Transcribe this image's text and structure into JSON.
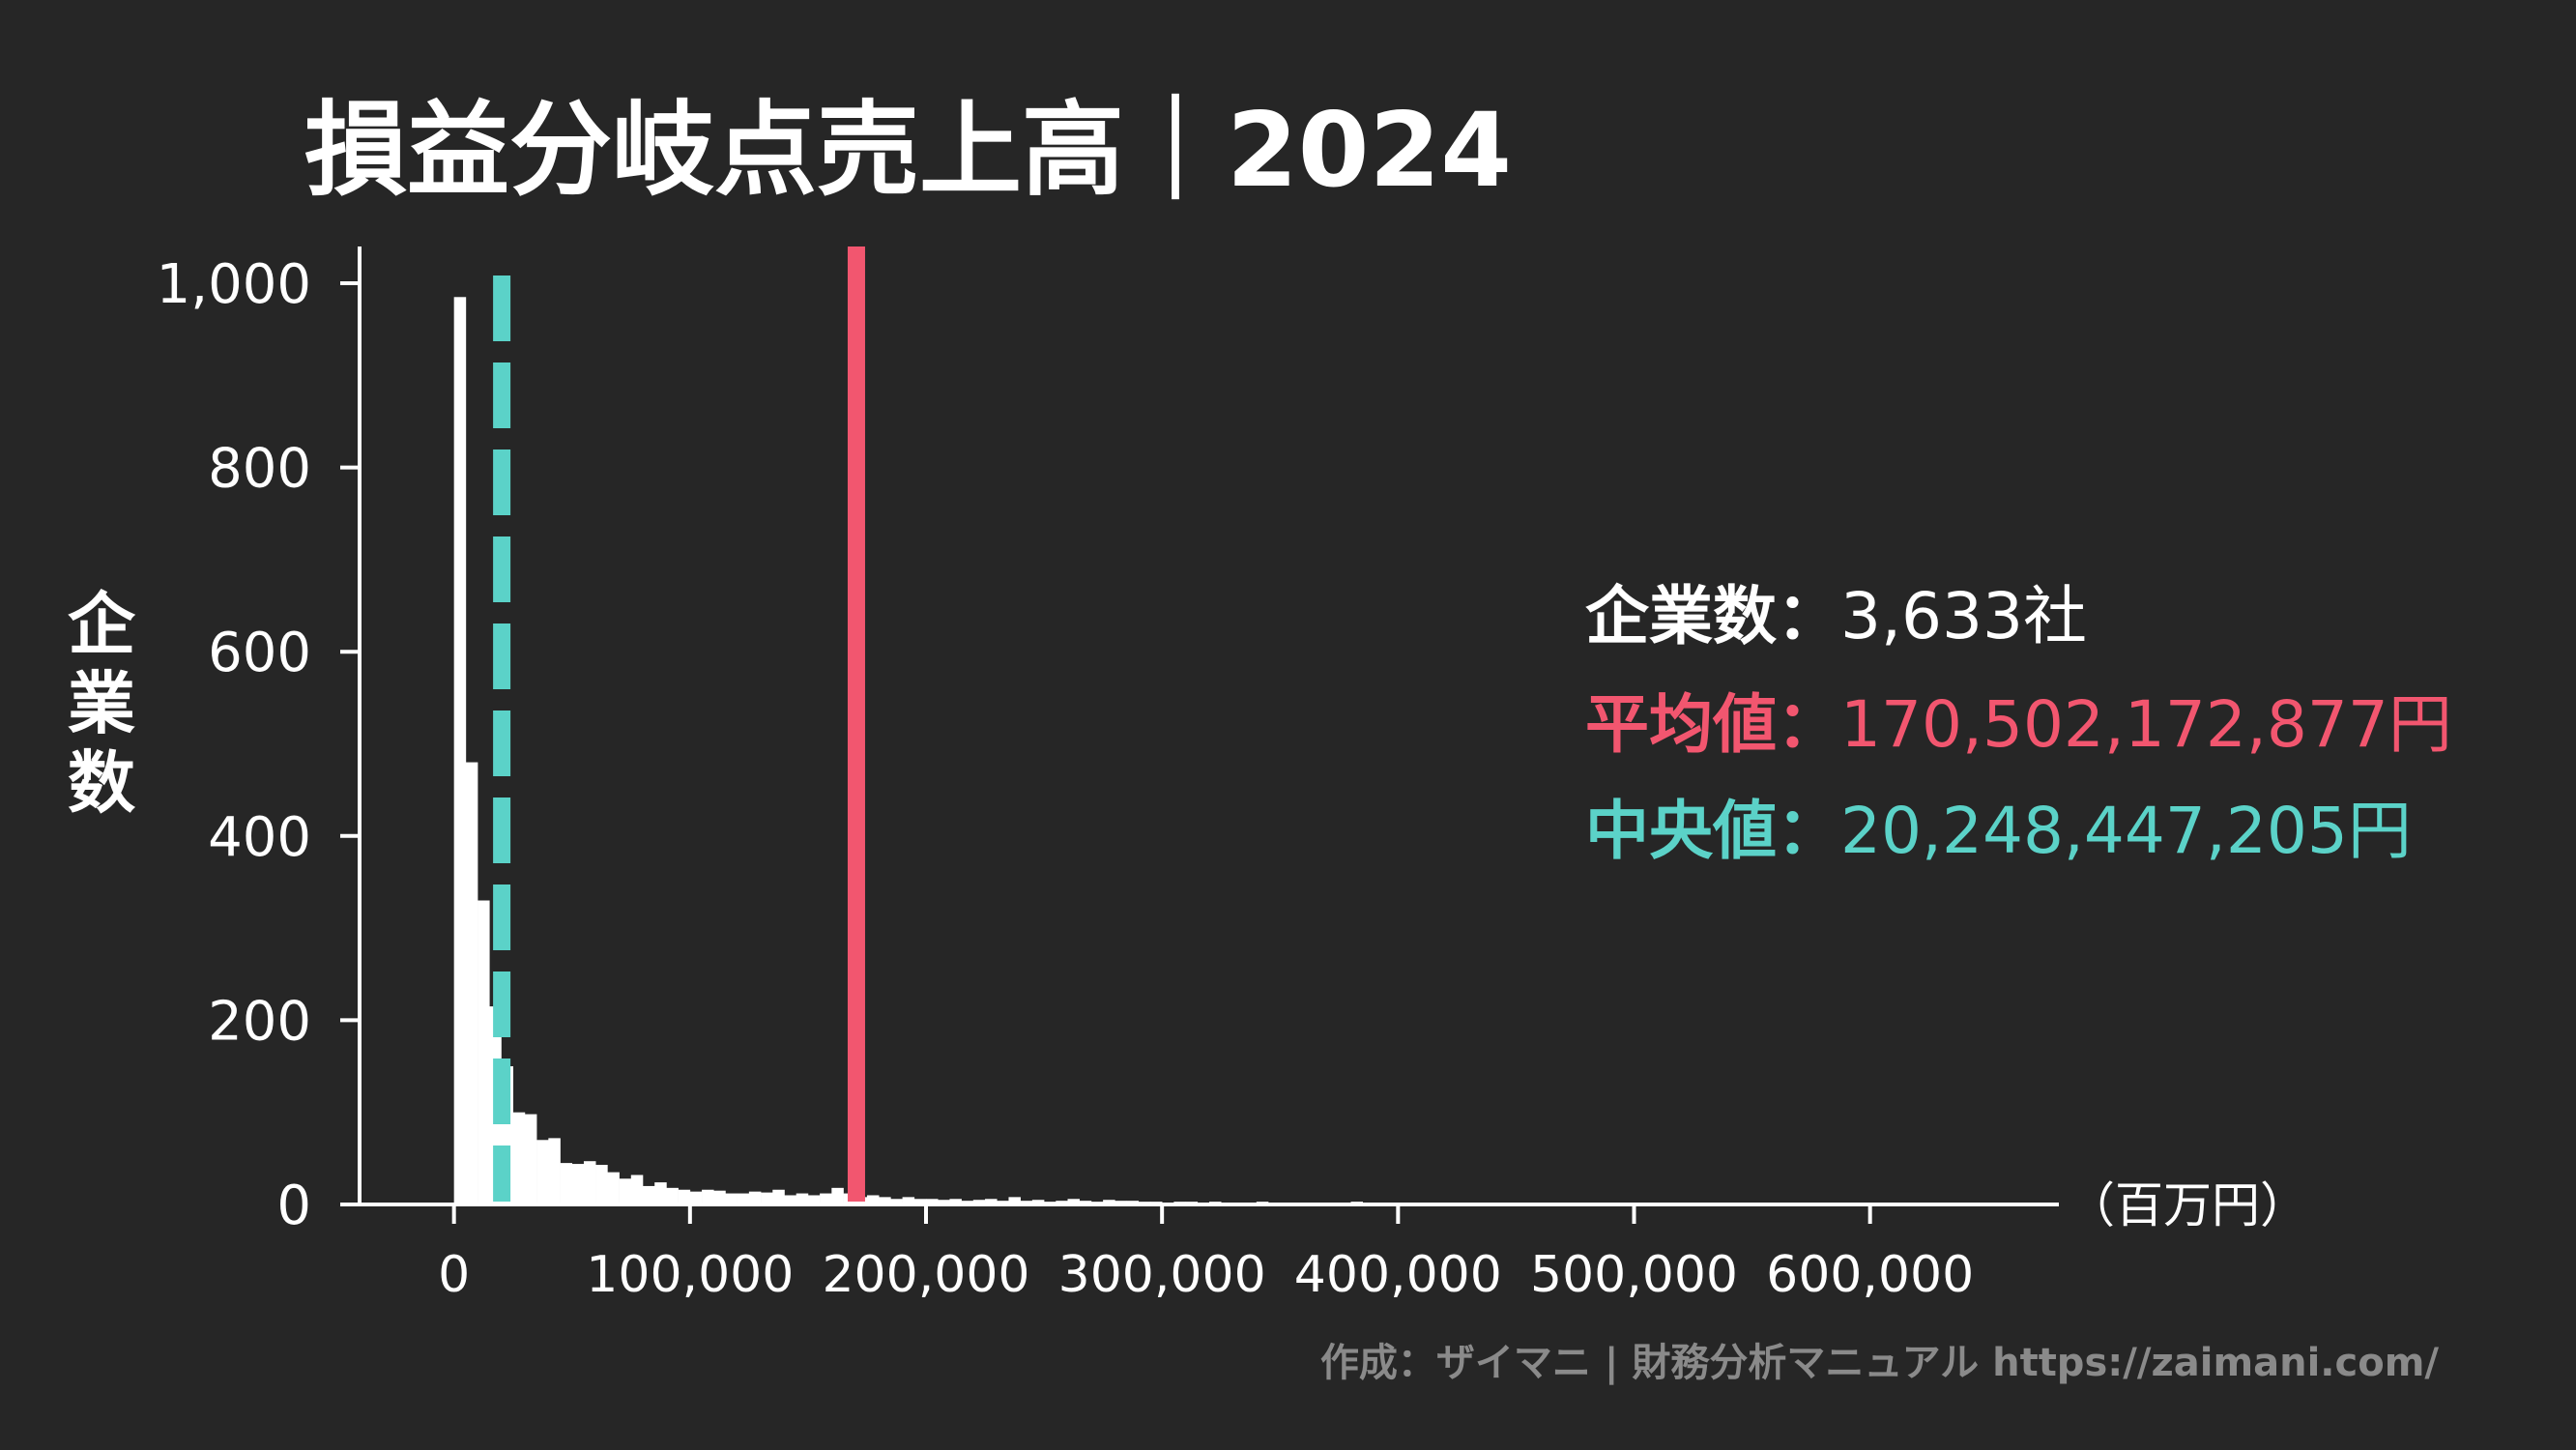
{
  "colors": {
    "background": "#262626",
    "bars": "#ffffff",
    "axis": "#ffffff",
    "mean": "#f2566f",
    "median": "#5bd2c8",
    "credit": "#8a8a8a"
  },
  "chart_data": {
    "type": "bar",
    "title": "損益分岐点売上高｜2024",
    "xlabel": "（百万円）",
    "ylabel": "企業数",
    "xlim": [
      -40000,
      680000
    ],
    "ylim": [
      0,
      1030
    ],
    "bin_width": 5000,
    "bin_start": 0,
    "x_ticks": [
      0,
      100000,
      200000,
      300000,
      400000,
      500000,
      600000
    ],
    "x_tick_labels": [
      "0",
      "100,000",
      "200,000",
      "300,000",
      "400,000",
      "500,000",
      "600,000"
    ],
    "y_ticks": [
      0,
      200,
      400,
      600,
      800,
      1000
    ],
    "y_tick_labels": [
      "0",
      "200",
      "400",
      "600",
      "800",
      "1,000"
    ],
    "values": [
      985,
      480,
      330,
      215,
      150,
      100,
      98,
      70,
      72,
      45,
      44,
      47,
      43,
      35,
      28,
      32,
      20,
      24,
      18,
      16,
      14,
      16,
      15,
      12,
      12,
      14,
      13,
      16,
      10,
      12,
      10,
      12,
      18,
      12,
      8,
      10,
      8,
      6,
      8,
      6,
      6,
      5,
      6,
      4,
      5,
      6,
      4,
      8,
      4,
      5,
      3,
      4,
      6,
      4,
      3,
      5,
      4,
      4,
      3,
      3,
      2,
      3,
      3,
      2,
      3,
      2,
      2,
      2,
      3,
      2,
      2,
      2,
      2,
      2,
      2,
      2,
      3,
      2,
      2,
      2,
      2,
      1,
      2,
      2,
      2,
      2,
      2,
      1,
      2,
      2,
      1,
      2,
      1,
      2,
      2,
      1,
      2,
      1,
      2,
      1,
      2,
      1,
      2,
      1,
      1,
      2,
      1,
      1,
      2,
      1,
      1,
      2,
      1,
      1,
      2,
      1,
      1,
      2,
      1,
      1,
      1,
      1,
      1,
      1,
      1,
      1,
      1,
      1,
      2,
      1,
      1
    ],
    "mean_line_x": 170502,
    "median_line_x": 20248
  },
  "stats": {
    "count_label": "企業数：",
    "count_value": "3,633社",
    "mean_label": "平均値：",
    "mean_value": "170,502,172,877円",
    "median_label": "中央値：",
    "median_value": "20,248,447,205円"
  },
  "credit": "作成：ザイマニ | 財務分析マニュアル https://zaimani.com/"
}
